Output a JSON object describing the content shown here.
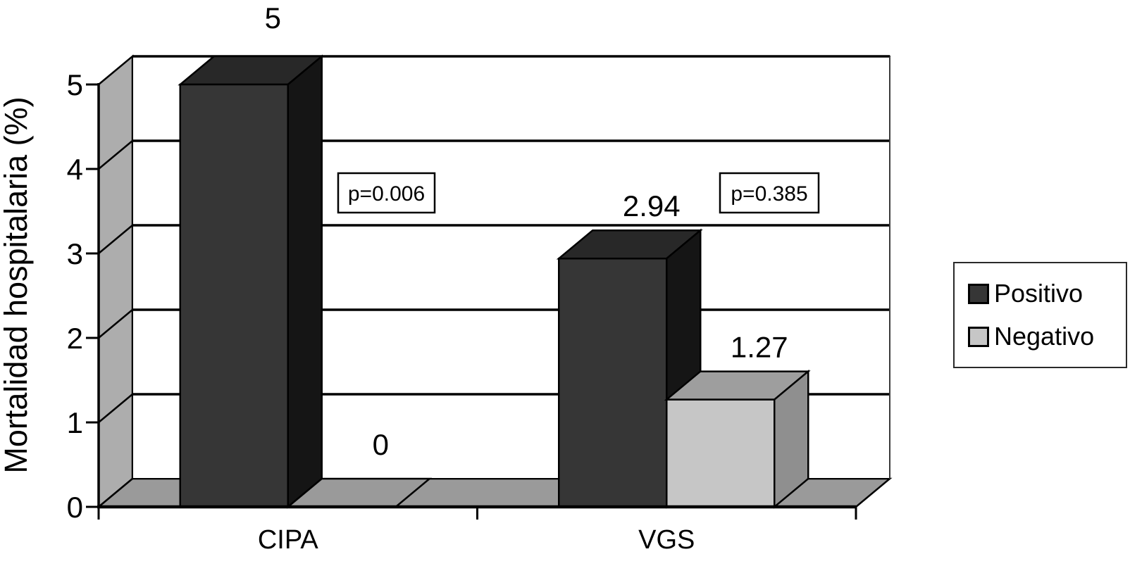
{
  "chart_data": {
    "type": "bar",
    "variant": "3d-column",
    "title": "",
    "ylabel": "Mortalidad hospitalaria (%)",
    "xlabel": "",
    "ylim": [
      0,
      5
    ],
    "yticks": [
      "0",
      "1",
      "2",
      "3",
      "4",
      "5"
    ],
    "grid": true,
    "categories": [
      "CIPA",
      "VGS"
    ],
    "series": [
      {
        "name": "Positivo",
        "values": [
          5,
          2.94
        ],
        "value_labels": [
          "5",
          "2.94"
        ],
        "front_color": "#363636",
        "top_color": "#282828",
        "side_color": "#151515"
      },
      {
        "name": "Negativo",
        "values": [
          0,
          1.27
        ],
        "value_labels": [
          "0",
          "1.27"
        ],
        "front_color": "#c6c6c6",
        "top_color": "#9e9e9e",
        "side_color": "#8f8f8f"
      }
    ],
    "annotations": [
      {
        "text": "p=0.006",
        "category": "CIPA"
      },
      {
        "text": "p=0.385",
        "category": "VGS"
      }
    ],
    "legend_position": "right"
  },
  "colors": {
    "background": "#ffffff",
    "left_wall": "#adadad",
    "floor": "#9a9a9a",
    "back_wall": "#ffffff",
    "gridline": "#000000",
    "back_wall_right_edge": "#3c3c3c",
    "annotation_box_border": "#000000",
    "text": "#000000"
  }
}
